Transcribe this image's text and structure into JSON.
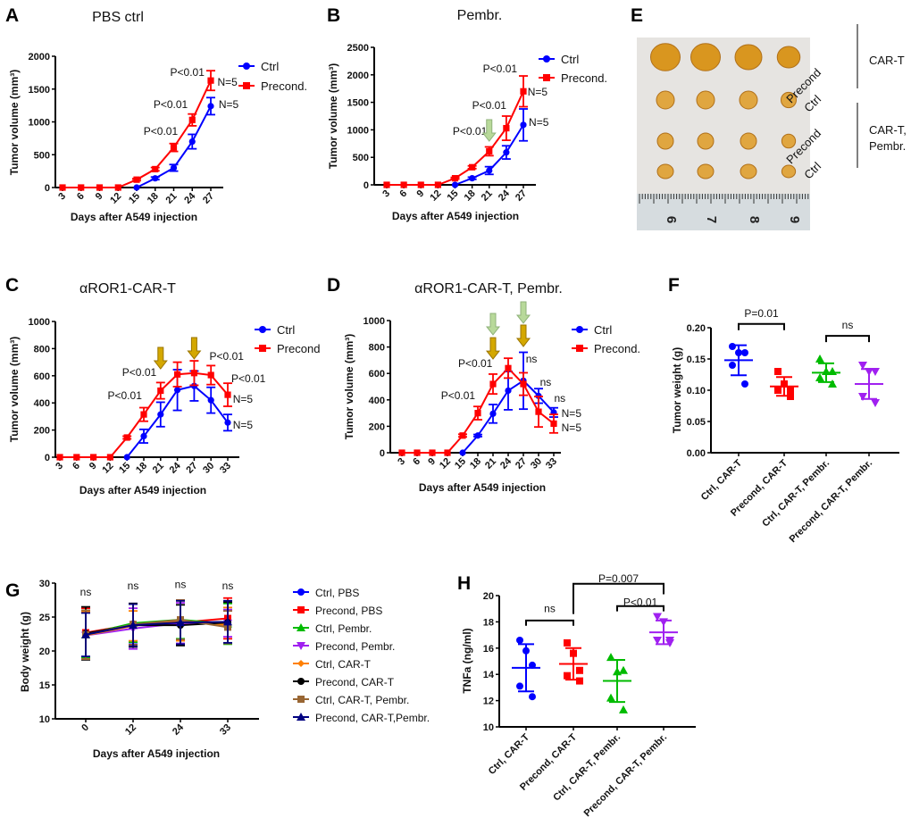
{
  "chart_data": [
    {
      "id": "A",
      "type": "line",
      "letter": "A",
      "title": "PBS ctrl",
      "xlabel": "Days after A549 injection",
      "ylabel": "Tumor volume (mm³)",
      "x": [
        3,
        6,
        9,
        12,
        15,
        18,
        21,
        24,
        27
      ],
      "ylim": [
        0,
        2000
      ],
      "yticks": [
        0,
        500,
        1000,
        1500,
        2000
      ],
      "series": [
        {
          "name": "Ctrl",
          "color": "#0000ff",
          "marker": "circle",
          "values": [
            0,
            0,
            0,
            0,
            0,
            140,
            300,
            700,
            1240
          ],
          "err": [
            0,
            0,
            0,
            0,
            0,
            20,
            50,
            110,
            130
          ]
        },
        {
          "name": "Precond.",
          "color": "#ff0000",
          "marker": "square",
          "values": [
            0,
            0,
            0,
            0,
            120,
            280,
            610,
            1030,
            1630
          ],
          "err": [
            0,
            0,
            0,
            0,
            15,
            25,
            60,
            90,
            150
          ]
        }
      ],
      "annotations": [
        {
          "text": "P<0.01",
          "x": 23.2,
          "y": 1755
        },
        {
          "text": "P<0.01",
          "x": 20.5,
          "y": 1265
        },
        {
          "text": "P<0.01",
          "x": 18.9,
          "y": 857
        },
        {
          "text": "N=5",
          "x": 29.7,
          "y": 1605
        },
        {
          "text": "N=5",
          "x": 29.9,
          "y": 1265
        }
      ],
      "arrows": []
    },
    {
      "id": "B",
      "type": "line",
      "letter": "B",
      "title": "Pembr.",
      "xlabel": "Days after A549 injection",
      "ylabel": "Tumor volume (mm³)",
      "x": [
        3,
        6,
        9,
        12,
        15,
        18,
        21,
        24,
        27
      ],
      "ylim": [
        0,
        2500
      ],
      "yticks": [
        0,
        500,
        1000,
        1500,
        2000,
        2500
      ],
      "series": [
        {
          "name": "Ctrl",
          "color": "#0000ff",
          "marker": "circle",
          "values": [
            0,
            0,
            0,
            0,
            0,
            120,
            260,
            590,
            1090
          ],
          "err": [
            0,
            0,
            0,
            0,
            0,
            20,
            70,
            120,
            290
          ]
        },
        {
          "name": "Precond.",
          "color": "#ff0000",
          "marker": "square",
          "values": [
            0,
            0,
            0,
            0,
            120,
            320,
            610,
            1030,
            1700
          ],
          "err": [
            0,
            0,
            0,
            0,
            15,
            25,
            80,
            220,
            280
          ]
        }
      ],
      "annotations": [
        {
          "text": "P<0.01",
          "x": 22.9,
          "y": 2110
        },
        {
          "text": "P<0.01",
          "x": 21.0,
          "y": 1445
        },
        {
          "text": "P<0.01",
          "x": 17.6,
          "y": 975
        },
        {
          "text": "N=5",
          "x": 29.5,
          "y": 1690
        },
        {
          "text": "N=5",
          "x": 29.7,
          "y": 1135
        }
      ],
      "arrows": [
        {
          "day": 21,
          "tip": 795,
          "color": "#b8d99a"
        }
      ]
    },
    {
      "id": "C",
      "type": "line",
      "letter": "C",
      "title": "αROR1-CAR-T",
      "xlabel": "Days after A549 injection",
      "ylabel": "Tumor volume (mm³)",
      "x": [
        3,
        6,
        9,
        12,
        15,
        18,
        21,
        24,
        27,
        30,
        33
      ],
      "ylim": [
        0,
        1000
      ],
      "yticks": [
        0,
        200,
        400,
        600,
        800,
        1000
      ],
      "series": [
        {
          "name": "Ctrl",
          "color": "#0000ff",
          "marker": "circle",
          "values": [
            0,
            0,
            0,
            0,
            0,
            155,
            315,
            495,
            525,
            420,
            255
          ],
          "err": [
            0,
            0,
            0,
            0,
            0,
            50,
            90,
            150,
            110,
            95,
            60
          ]
        },
        {
          "name": "Precond",
          "color": "#ff0000",
          "marker": "square",
          "values": [
            0,
            0,
            0,
            0,
            145,
            315,
            490,
            610,
            620,
            605,
            460
          ],
          "err": [
            0,
            0,
            0,
            0,
            10,
            50,
            60,
            90,
            90,
            70,
            85
          ]
        }
      ],
      "annotations": [
        {
          "text": "P<0.01",
          "x": 17.2,
          "y": 625
        },
        {
          "text": "P<0.01",
          "x": 14.6,
          "y": 454
        },
        {
          "text": "P<0.01",
          "x": 32.8,
          "y": 743
        },
        {
          "text": "P<0.01",
          "x": 36.7,
          "y": 579
        },
        {
          "text": "N=5",
          "x": 35.7,
          "y": 428
        },
        {
          "text": "N=5",
          "x": 35.7,
          "y": 237
        }
      ],
      "arrows": [
        {
          "day": 21,
          "tip": 651,
          "color": "#d4a800"
        },
        {
          "day": 27,
          "tip": 724,
          "color": "#d4a800"
        }
      ]
    },
    {
      "id": "D",
      "type": "line",
      "letter": "D",
      "title": "αROR1-CAR-T, Pembr.",
      "xlabel": "Days after A549 injection",
      "ylabel": "Tumor volume (mm³)",
      "x": [
        3,
        6,
        9,
        12,
        15,
        18,
        21,
        24,
        27,
        30,
        33
      ],
      "ylim": [
        0,
        1000
      ],
      "yticks": [
        0,
        200,
        400,
        600,
        800,
        1000
      ],
      "series": [
        {
          "name": "Ctrl",
          "color": "#0000ff",
          "marker": "circle",
          "values": [
            0,
            0,
            0,
            0,
            0,
            130,
            295,
            470,
            545,
            430,
            305
          ],
          "err": [
            0,
            0,
            0,
            0,
            0,
            8,
            70,
            145,
            215,
            55,
            35
          ]
        },
        {
          "name": "Precond.",
          "color": "#ff0000",
          "marker": "square",
          "values": [
            0,
            0,
            0,
            0,
            130,
            300,
            520,
            640,
            520,
            310,
            220
          ],
          "err": [
            0,
            0,
            0,
            0,
            10,
            50,
            75,
            75,
            85,
            115,
            70
          ]
        }
      ],
      "annotations": [
        {
          "text": "P<0.01",
          "x": 17.5,
          "y": 676
        },
        {
          "text": "P<0.01",
          "x": 14.1,
          "y": 432
        },
        {
          "text": "ns",
          "x": 28.6,
          "y": 709
        },
        {
          "text": "ns",
          "x": 31.4,
          "y": 534
        },
        {
          "text": "ns",
          "x": 34.2,
          "y": 412
        },
        {
          "text": "N=5",
          "x": 36.5,
          "y": 297
        },
        {
          "text": "N=5",
          "x": 36.5,
          "y": 189
        }
      ],
      "arrows": [
        {
          "day": 21,
          "tip": 892,
          "color": "#b8d99a"
        },
        {
          "day": 21,
          "tip": 709,
          "color": "#d4a800"
        },
        {
          "day": 27,
          "tip": 980,
          "color": "#b8d99a"
        },
        {
          "day": 27,
          "tip": 804,
          "color": "#d4a800"
        }
      ]
    },
    {
      "id": "F",
      "type": "scatter",
      "letter": "F",
      "ylabel": "Tumor weight (g)",
      "categories": [
        "Ctrl, CAR-T",
        "Precond, CAR-T",
        "Ctrl, CAR-T, Pembr.",
        "Precond, CAR-T, Pembr."
      ],
      "ylim": [
        0,
        0.2
      ],
      "yticks": [
        "0.00",
        "0.05",
        "0.10",
        "0.15",
        "0.20"
      ],
      "groups": [
        {
          "color": "#0000ff",
          "marker": "circle",
          "points": [
            0.17,
            0.16,
            0.16,
            0.14,
            0.11
          ],
          "mean": 0.148,
          "sd": 0.024
        },
        {
          "color": "#ff0000",
          "marker": "square",
          "points": [
            0.13,
            0.11,
            0.1,
            0.1,
            0.09
          ],
          "mean": 0.106,
          "sd": 0.015
        },
        {
          "color": "#00bb00",
          "marker": "triangle",
          "points": [
            0.15,
            0.13,
            0.13,
            0.12,
            0.11
          ],
          "mean": 0.128,
          "sd": 0.015
        },
        {
          "color": "#a020f0",
          "marker": "triangle-down",
          "points": [
            0.14,
            0.13,
            0.13,
            0.09,
            0.08
          ],
          "mean": 0.11,
          "sd": 0.024
        }
      ],
      "brackets": [
        {
          "from": 0,
          "to": 1,
          "y": 0.206,
          "y_from": 0.196,
          "y_to": 0.196,
          "label": "P=0.01",
          "label_y": 0.223
        },
        {
          "from": 2,
          "to": 3,
          "y": 0.187,
          "y_from": 0.177,
          "y_to": 0.177,
          "label": "ns",
          "label_y": 0.204
        }
      ]
    },
    {
      "id": "G",
      "type": "line",
      "letter": "G",
      "ylabel": "Body weight (g)",
      "xlabel": "Days after A549 injection",
      "x": [
        0,
        12,
        24,
        33
      ],
      "ylim": [
        10,
        30
      ],
      "yticks": [
        10,
        15,
        20,
        25,
        30
      ],
      "series": [
        {
          "name": "Ctrl, PBS",
          "color": "#0000ff",
          "marker": "circle",
          "values": [
            22.5,
            24.0,
            24.3,
            24.2
          ],
          "err": [
            3.5,
            3.0,
            3.2,
            3.0
          ]
        },
        {
          "name": "Precond, PBS",
          "color": "#ff0000",
          "marker": "square",
          "values": [
            22.7,
            23.9,
            24.2,
            24.8
          ],
          "err": [
            3.6,
            3.0,
            3.2,
            3.0
          ]
        },
        {
          "name": "Ctrl, Pembr.",
          "color": "#00bb00",
          "marker": "triangle",
          "values": [
            22.4,
            24.1,
            24.6,
            24.0
          ],
          "err": [
            3.4,
            2.8,
            2.8,
            3.0
          ]
        },
        {
          "name": "Precond, Pembr.",
          "color": "#a020f0",
          "marker": "triangle-down",
          "values": [
            22.3,
            23.3,
            24.1,
            24.1
          ],
          "err": [
            3.5,
            3.0,
            3.0,
            2.0
          ]
        },
        {
          "name": "Ctrl, CAR-T",
          "color": "#ff8000",
          "marker": "diamond",
          "values": [
            22.3,
            23.7,
            24.5,
            23.8
          ],
          "err": [
            3.5,
            2.2,
            3.0,
            2.6
          ]
        },
        {
          "name": "Precond, CAR-T",
          "color": "#000000",
          "marker": "circle",
          "values": [
            22.6,
            23.8,
            23.8,
            24.2
          ],
          "err": [
            3.9,
            3.2,
            3.0,
            3.0
          ]
        },
        {
          "name": "Ctrl, CAR-T, Pembr.",
          "color": "#996633",
          "marker": "square",
          "values": [
            22.4,
            23.9,
            24.6,
            23.5
          ],
          "err": [
            3.6,
            3.0,
            2.9,
            2.4
          ]
        },
        {
          "name": "Precond, CAR-T,Pembr.",
          "color": "#000080",
          "marker": "triangle",
          "values": [
            22.4,
            23.8,
            24.2,
            24.3
          ],
          "err": [
            3.2,
            3.1,
            3.2,
            3.1
          ]
        }
      ],
      "annotations": [
        {
          "text": "ns",
          "x": 0,
          "y": 28.7
        },
        {
          "text": "ns",
          "x": 12,
          "y": 29.6
        },
        {
          "text": "ns",
          "x": 24,
          "y": 29.8
        },
        {
          "text": "ns",
          "x": 33,
          "y": 29.6
        }
      ],
      "arrows": []
    },
    {
      "id": "H",
      "type": "scatter",
      "letter": "H",
      "ylabel": "TNFa (ng/ml)",
      "categories": [
        "Ctrl, CAR-T",
        "Precond, CAR-T",
        "Ctrl, CAR-T, Pembr.",
        "Precond, CAR-T, Pembr."
      ],
      "ylim": [
        10,
        20
      ],
      "yticks": [
        "10",
        "12",
        "14",
        "16",
        "18",
        "20"
      ],
      "groups": [
        {
          "color": "#0000ff",
          "marker": "circle",
          "points": [
            16.6,
            15.8,
            14.7,
            13.1,
            12.3
          ],
          "mean": 14.5,
          "sd": 1.8
        },
        {
          "color": "#ff0000",
          "marker": "square",
          "points": [
            16.4,
            15.6,
            14.3,
            13.9,
            13.5
          ],
          "mean": 14.8,
          "sd": 1.2
        },
        {
          "color": "#00bb00",
          "marker": "triangle",
          "points": [
            15.3,
            14.2,
            14.3,
            12.2,
            11.3
          ],
          "mean": 13.5,
          "sd": 1.6
        },
        {
          "color": "#a020f0",
          "marker": "triangle-down",
          "points": [
            18.4,
            18.0,
            16.6,
            16.6,
            16.4
          ],
          "mean": 17.2,
          "sd": 0.9
        }
      ],
      "brackets": [
        {
          "from": 0,
          "to": 1,
          "y": 18.1,
          "y_from": 17.7,
          "y_to": 17.7,
          "label": "ns",
          "label_y": 19.0
        },
        {
          "from": 2,
          "to": 3,
          "y": 19.2,
          "y_from": 18.8,
          "y_to": 18.8,
          "label": "P<0.01",
          "label_y": 19.5
        },
        {
          "from": 1,
          "to": 3,
          "y": 20.9,
          "y_from": 18.6,
          "y_to": 20.1,
          "label": "P=0.007",
          "label_y": 21.3
        }
      ]
    }
  ],
  "panel_e": {
    "letter": "E",
    "row_labels": [
      "Precond",
      "Ctrl",
      "Precond",
      "Ctrl"
    ],
    "group_labels": [
      [
        "CAR-T"
      ],
      [
        "CAR-T,",
        "Pembr."
      ]
    ],
    "ruler_numbers": [
      "6",
      "7",
      "8",
      "9"
    ]
  }
}
